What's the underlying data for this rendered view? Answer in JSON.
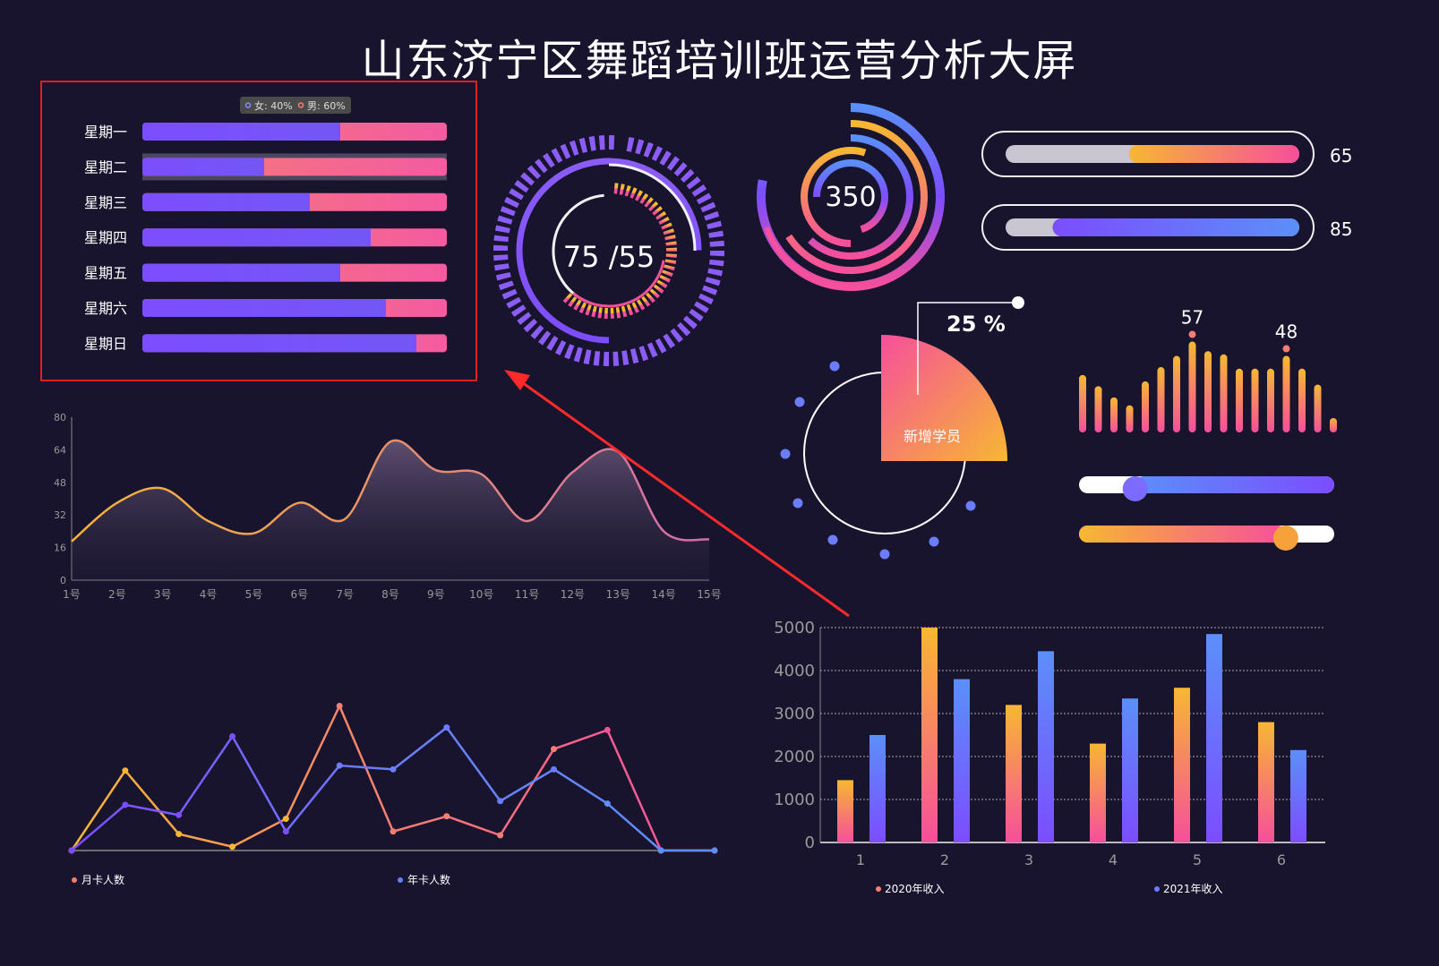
{
  "page": {
    "title": "山东济宁区舞蹈培训班运营分析大屏"
  },
  "colors": {
    "purple": "#7c4dff",
    "purple_light": "#8b5cf6",
    "pink": "#f64f9b",
    "salmon": "#f57e73",
    "orange": "#f7b733",
    "blue": "#5b8ff9",
    "highlight_box": "#e02020",
    "arrow": "#ff2a2a"
  },
  "gender_chart": {
    "type": "bar",
    "legend": [
      {
        "label": "女: 40%"
      },
      {
        "label": "男: 60%"
      }
    ],
    "categories": [
      "星期一",
      "星期二",
      "星期三",
      "星期四",
      "星期五",
      "星期六",
      "星期日"
    ],
    "female_share": [
      0.65,
      0.4,
      0.55,
      0.75,
      0.65,
      0.8,
      0.9
    ],
    "highlighted_index": 1
  },
  "ring_gauge": {
    "value_text": "75 /55",
    "outer_progress": 0.75,
    "inner_progress": 0.55
  },
  "radial_bars": {
    "value_text": "350",
    "arcs": [
      0.78,
      0.66,
      0.62,
      0.55,
      0.7
    ]
  },
  "progress_bars": [
    {
      "value": 65,
      "label": "65"
    },
    {
      "value": 85,
      "label": "85"
    }
  ],
  "pie_new_students": {
    "label": "新增学员",
    "percent_text": "25 %",
    "value": 25
  },
  "vertical_bars": {
    "values": [
      36,
      29,
      22,
      17,
      32,
      41,
      48,
      57,
      51,
      49,
      40,
      40,
      40,
      48,
      40,
      30,
      9
    ],
    "annotations": [
      {
        "index": 7,
        "label": "57"
      },
      {
        "index": 13,
        "label": "48"
      }
    ]
  },
  "sliders": [
    {
      "value": 0.22,
      "style": "blue-purple"
    },
    {
      "value": 0.81,
      "style": "orange-pink"
    }
  ],
  "chart_data": [
    {
      "type": "area",
      "categories": [
        "1号",
        "2号",
        "3号",
        "4号",
        "5号",
        "6号",
        "7号",
        "8号",
        "9号",
        "10号",
        "11号",
        "12号",
        "13号",
        "14号",
        "15号"
      ],
      "values": [
        19,
        38,
        45,
        29,
        23,
        38,
        30,
        68,
        54,
        52,
        29,
        53,
        63,
        24,
        20
      ],
      "ylim": [
        0,
        80
      ],
      "yticks": [
        "0",
        "16",
        "32",
        "48",
        "64",
        "80"
      ]
    },
    {
      "type": "line",
      "x": [
        "1",
        "2",
        "3",
        "4",
        "5",
        "6",
        "7",
        "8",
        "9",
        "10",
        "11",
        "12",
        "13"
      ],
      "series": [
        {
          "name": "月卡人数",
          "values": [
            0,
            63,
            13,
            3,
            25,
            114,
            15,
            27,
            12,
            80,
            95,
            0,
            0
          ]
        },
        {
          "name": "年卡人数",
          "values": [
            0,
            36,
            28,
            90,
            15,
            67,
            64,
            97,
            39,
            64,
            37,
            0,
            0
          ]
        }
      ],
      "legend": [
        "月卡人数",
        "年卡人数"
      ]
    },
    {
      "type": "bar",
      "categories": [
        "1",
        "2",
        "3",
        "4",
        "5",
        "6"
      ],
      "series": [
        {
          "name": "2020年收入",
          "values": [
            1450,
            5000,
            3200,
            2300,
            3600,
            2800
          ]
        },
        {
          "name": "2021年收入",
          "values": [
            2500,
            3800,
            4450,
            3350,
            4850,
            2150
          ]
        }
      ],
      "ylim": [
        0,
        5000
      ],
      "yticks": [
        "0",
        "1000",
        "2000",
        "3000",
        "4000",
        "5000"
      ],
      "legend_position": "bottom"
    }
  ]
}
